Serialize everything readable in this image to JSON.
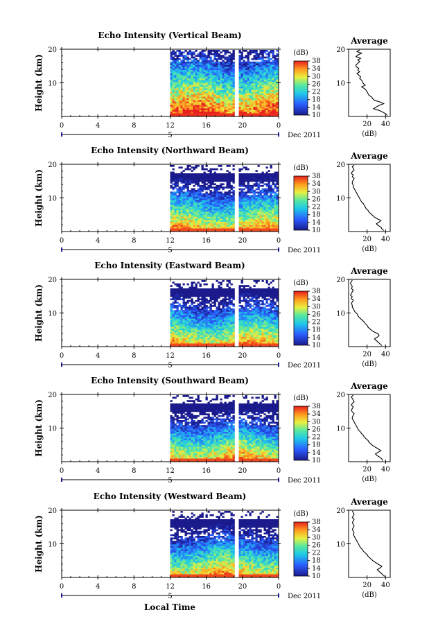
{
  "panels": [
    {
      "title": "Echo Intensity (Vertical Beam)",
      "average_profile": [
        42,
        40,
        37,
        33,
        27,
        30,
        33,
        38,
        34,
        28,
        26,
        25,
        22,
        21,
        20,
        19,
        17,
        14,
        18,
        16,
        15,
        14,
        12,
        13,
        11,
        9,
        12,
        10,
        11,
        8,
        8,
        10,
        12,
        10,
        13,
        8,
        10,
        14,
        9,
        12
      ]
    },
    {
      "title": "Echo Intensity (Northward Beam)",
      "average_profile": [
        38,
        36,
        35,
        32,
        30,
        33,
        35,
        31,
        28,
        26,
        24,
        22,
        21,
        19,
        18,
        17,
        16,
        14,
        13,
        12,
        11,
        10,
        9,
        8,
        7,
        6,
        5,
        5,
        4,
        4,
        5,
        6,
        4,
        5,
        3,
        4,
        6,
        5,
        4,
        6
      ]
    },
    {
      "title": "Echo Intensity (Eastward Beam)",
      "average_profile": [
        36,
        34,
        32,
        30,
        28,
        31,
        33,
        32,
        28,
        25,
        23,
        21,
        20,
        18,
        17,
        15,
        13,
        11,
        10,
        9,
        7,
        6,
        5,
        4,
        4,
        3,
        4,
        5,
        3,
        4,
        2,
        3,
        4,
        5,
        3,
        4,
        3,
        2,
        3,
        4
      ]
    },
    {
      "title": "Echo Intensity (Southward Beam)",
      "average_profile": [
        37,
        36,
        34,
        31,
        29,
        32,
        35,
        32,
        29,
        26,
        24,
        22,
        21,
        19,
        17,
        16,
        14,
        13,
        11,
        10,
        9,
        8,
        7,
        6,
        5,
        4,
        4,
        5,
        6,
        4,
        3,
        4,
        5,
        3,
        4,
        6,
        5,
        4,
        3,
        5
      ]
    },
    {
      "title": "Echo Intensity (Westward Beam)",
      "average_profile": [
        39,
        37,
        35,
        33,
        31,
        34,
        36,
        33,
        30,
        27,
        25,
        23,
        21,
        20,
        18,
        16,
        15,
        13,
        12,
        11,
        10,
        9,
        8,
        7,
        6,
        5,
        6,
        5,
        4,
        5,
        6,
        5,
        4,
        5,
        6,
        4,
        5,
        6,
        5,
        4
      ]
    }
  ],
  "axes": {
    "ylabel": "Height (km)",
    "yticks": [
      "20",
      "10"
    ],
    "xticks": [
      "0",
      "4",
      "8",
      "12",
      "16",
      "20",
      "0"
    ],
    "date_marker": "5",
    "date_label": "Dec 2011",
    "xlabel": "Local Time",
    "colorbar_label": "(dB)",
    "colorbar_ticks": [
      "38",
      "34",
      "30",
      "26",
      "22",
      "18",
      "14",
      "10"
    ],
    "average_title": "Average",
    "average_xlabel": "(dB)",
    "average_yticks": [
      "20",
      "10"
    ],
    "average_xticks": [
      "20",
      "40"
    ]
  },
  "chart_data": {
    "type": "heatmap",
    "title": "Echo Intensity",
    "series": [
      {
        "name": "Vertical Beam"
      },
      {
        "name": "Northward Beam"
      },
      {
        "name": "Eastward Beam"
      },
      {
        "name": "Southward Beam"
      },
      {
        "name": "Westward Beam"
      }
    ],
    "x_range_hours": [
      0,
      24
    ],
    "y_range_km": [
      0,
      20
    ],
    "data_start_hour": 12,
    "data_gap_hour": 19.3,
    "colorbar_range_db": [
      10,
      38
    ],
    "average_profile_x_range_db": [
      0,
      45
    ]
  }
}
